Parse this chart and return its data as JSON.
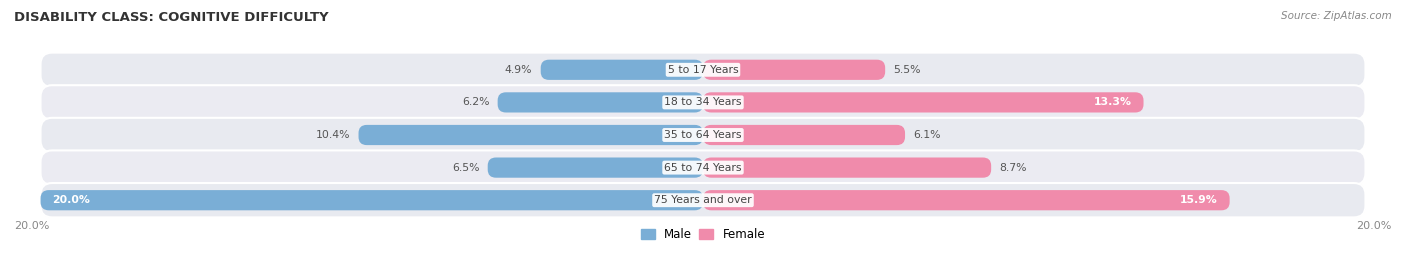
{
  "title": "DISABILITY CLASS: COGNITIVE DIFFICULTY",
  "source": "Source: ZipAtlas.com",
  "categories": [
    "5 to 17 Years",
    "18 to 34 Years",
    "35 to 64 Years",
    "65 to 74 Years",
    "75 Years and over"
  ],
  "male_values": [
    4.9,
    6.2,
    10.4,
    6.5,
    20.0
  ],
  "female_values": [
    5.5,
    13.3,
    6.1,
    8.7,
    15.9
  ],
  "max_val": 20.0,
  "male_color": "#7aaed6",
  "female_color": "#f08bab",
  "bg_pill_color": "#e8eaf0",
  "bg_alt_color": "#ebebf2",
  "title_color": "#333333",
  "axis_label_color": "#888888",
  "legend_male_color": "#7aaed6",
  "legend_female_color": "#f08bab",
  "value_label_dark": "#555555",
  "value_label_light": "#ffffff"
}
